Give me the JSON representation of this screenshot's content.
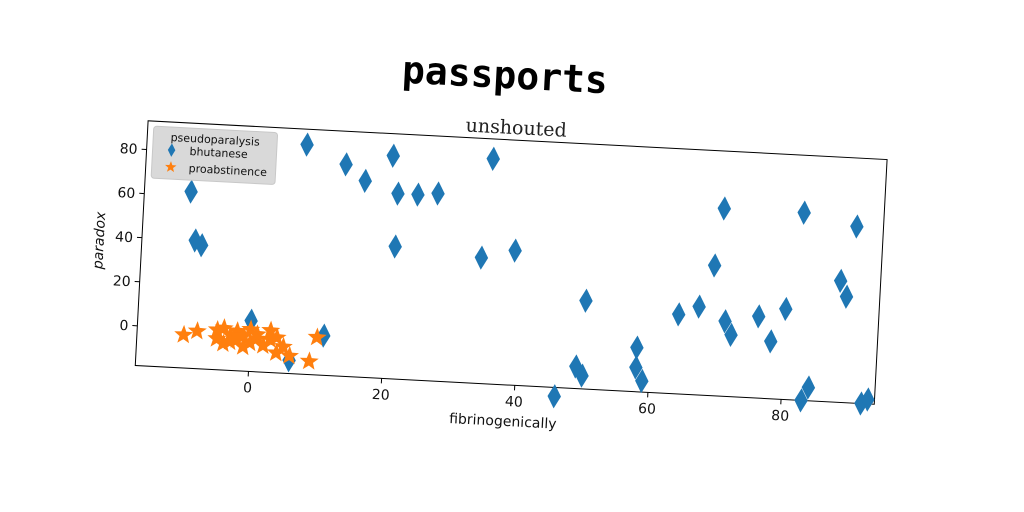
{
  "chart_data": {
    "type": "scatter",
    "title": "passports",
    "subtitle": "unshouted",
    "xlabel": "fibrinogenically",
    "ylabel": "paradox",
    "xlim": [
      -17,
      94
    ],
    "ylim": [
      -18,
      93
    ],
    "xticks": [
      0,
      20,
      40,
      60,
      80
    ],
    "yticks": [
      0,
      20,
      40,
      60,
      80
    ],
    "legend": {
      "title": "pseudoparalysis",
      "placement": "top-left"
    },
    "series": [
      {
        "name": "bhutanese",
        "marker": "diamond",
        "color": "#1f77b4",
        "points": [
          [
            -10,
            62
          ],
          [
            -9,
            73
          ],
          [
            -9,
            40
          ],
          [
            -8,
            38
          ],
          [
            0,
            5
          ],
          [
            7,
            86
          ],
          [
            13,
            78
          ],
          [
            16,
            71
          ],
          [
            20,
            83
          ],
          [
            21,
            66
          ],
          [
            21,
            42
          ],
          [
            24,
            66
          ],
          [
            27,
            67
          ],
          [
            11,
            0
          ],
          [
            34,
            39
          ],
          [
            35,
            84
          ],
          [
            39,
            43
          ],
          [
            6,
            -12
          ],
          [
            46,
            -22
          ],
          [
            49,
            -8
          ],
          [
            50,
            -12
          ],
          [
            50,
            22
          ],
          [
            58,
            2
          ],
          [
            58,
            -7
          ],
          [
            59,
            -13
          ],
          [
            64,
            18
          ],
          [
            67,
            22
          ],
          [
            69,
            41
          ],
          [
            70,
            67
          ],
          [
            71,
            16
          ],
          [
            72,
            10
          ],
          [
            76,
            19
          ],
          [
            78,
            8
          ],
          [
            80,
            23
          ],
          [
            82,
            67
          ],
          [
            83,
            -18
          ],
          [
            84,
            -12
          ],
          [
            88,
            37
          ],
          [
            89,
            30
          ],
          [
            90,
            62
          ],
          [
            92,
            -18
          ],
          [
            93,
            -16
          ]
        ]
      },
      {
        "name": "proabstinence",
        "marker": "star",
        "color": "#ff7f0e",
        "points": [
          [
            -10,
            -3
          ],
          [
            -8,
            -1
          ],
          [
            -5,
            -4
          ],
          [
            -5,
            0
          ],
          [
            -4,
            -6
          ],
          [
            -4,
            1
          ],
          [
            -3,
            -2
          ],
          [
            -3,
            -5
          ],
          [
            -2,
            0
          ],
          [
            -2,
            -4
          ],
          [
            -1,
            -7
          ],
          [
            -1,
            -2
          ],
          [
            0,
            1
          ],
          [
            0,
            -5
          ],
          [
            1,
            -3
          ],
          [
            1,
            -1
          ],
          [
            2,
            -6
          ],
          [
            3,
            -3
          ],
          [
            3,
            1
          ],
          [
            4,
            -9
          ],
          [
            4,
            -2
          ],
          [
            5,
            -6
          ],
          [
            6,
            -10
          ],
          [
            9,
            -12
          ],
          [
            10,
            -1
          ]
        ]
      }
    ]
  }
}
